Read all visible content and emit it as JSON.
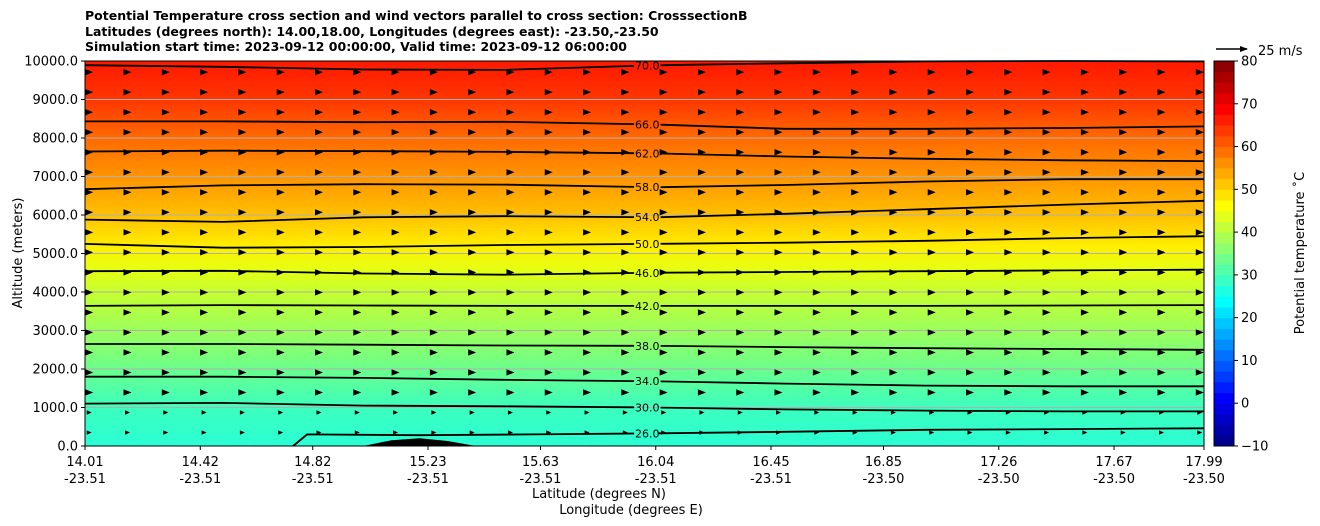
{
  "title_lines": [
    "Potential Temperature cross section and wind vectors parallel to cross section: CrosssectionB",
    "Latitudes (degrees north): 14.00,18.00, Longitudes (degrees east): -23.50,-23.50",
    "Simulation start time: 2023-09-12 00:00:00, Valid time: 2023-09-12 06:00:00"
  ],
  "chart_data": {
    "type": "heatmap",
    "ylabel": "Altitude (meters)",
    "xlabel_line1": "Latitude (degrees N)",
    "xlabel_line2": "Longitude (degrees E)",
    "ylim": [
      0,
      10000
    ],
    "yticks": [
      "0.0",
      "1000.0",
      "2000.0",
      "3000.0",
      "4000.0",
      "5000.0",
      "6000.0",
      "7000.0",
      "8000.0",
      "9000.0",
      "10000.0"
    ],
    "yticks_values": [
      0,
      1000,
      2000,
      3000,
      4000,
      5000,
      6000,
      7000,
      8000,
      9000,
      10000
    ],
    "xlim": [
      14.01,
      17.99
    ],
    "xticks_lat": [
      "14.01",
      "14.42",
      "14.82",
      "15.23",
      "15.63",
      "16.04",
      "16.45",
      "16.85",
      "17.26",
      "17.67",
      "17.99"
    ],
    "xticks_lon": [
      "-23.51",
      "-23.51",
      "-23.51",
      "-23.51",
      "-23.51",
      "-23.51",
      "-23.51",
      "-23.50",
      "-23.50",
      "-23.50",
      "-23.50"
    ],
    "xticks_values": [
      14.01,
      14.42,
      14.82,
      15.23,
      15.63,
      16.04,
      16.45,
      16.85,
      17.26,
      17.67,
      17.99
    ],
    "grid": true,
    "colorbar": {
      "label": "Potential temperature $^\\circ$C",
      "label_display": "Potential temperature ˚C",
      "range": [
        -10,
        80
      ],
      "ticks": [
        "80",
        "70",
        "60",
        "50",
        "40",
        "30",
        "20",
        "10",
        "0",
        "−10"
      ],
      "tick_values": [
        80,
        70,
        60,
        50,
        40,
        30,
        20,
        10,
        0,
        -10
      ],
      "colormap": "jet"
    },
    "quiver_key": "25 m/s",
    "contours": [
      {
        "label": "26.0",
        "value": 26,
        "x": [
          14.75,
          14.8,
          15.2,
          15.6,
          15.9,
          16.05,
          16.5,
          17.0,
          17.5,
          17.99
        ],
        "y": [
          0,
          300,
          280,
          300,
          320,
          330,
          370,
          420,
          440,
          460
        ]
      },
      {
        "label": "30.0",
        "value": 30,
        "x": [
          14.01,
          14.5,
          15.0,
          15.5,
          16.04,
          16.5,
          17.0,
          17.5,
          17.99
        ],
        "y": [
          1100,
          1120,
          1050,
          1030,
          1000,
          950,
          920,
          900,
          900
        ]
      },
      {
        "label": "34.0",
        "value": 34,
        "x": [
          14.01,
          14.5,
          15.0,
          15.5,
          16.04,
          16.5,
          17.0,
          17.5,
          17.99
        ],
        "y": [
          1800,
          1800,
          1770,
          1720,
          1680,
          1620,
          1570,
          1550,
          1550
        ]
      },
      {
        "label": "38.0",
        "value": 38,
        "x": [
          14.01,
          14.5,
          15.0,
          15.5,
          16.04,
          16.5,
          17.0,
          17.5,
          17.99
        ],
        "y": [
          2650,
          2650,
          2630,
          2610,
          2600,
          2570,
          2540,
          2520,
          2500
        ]
      },
      {
        "label": "42.0",
        "value": 42,
        "x": [
          14.01,
          14.5,
          15.0,
          15.5,
          16.04,
          16.5,
          17.0,
          17.5,
          17.99
        ],
        "y": [
          3640,
          3660,
          3650,
          3640,
          3640,
          3640,
          3640,
          3650,
          3660
        ]
      },
      {
        "label": "46.0",
        "value": 46,
        "x": [
          14.01,
          14.5,
          15.0,
          15.5,
          16.04,
          16.5,
          17.0,
          17.5,
          17.99
        ],
        "y": [
          4540,
          4550,
          4480,
          4450,
          4500,
          4520,
          4540,
          4560,
          4580
        ]
      },
      {
        "label": "50.0",
        "value": 50,
        "x": [
          14.01,
          14.5,
          15.0,
          15.5,
          16.04,
          16.5,
          17.0,
          17.5,
          17.99
        ],
        "y": [
          5250,
          5150,
          5170,
          5220,
          5250,
          5280,
          5330,
          5400,
          5450
        ]
      },
      {
        "label": "54.0",
        "value": 54,
        "x": [
          14.01,
          14.5,
          15.0,
          15.5,
          16.04,
          16.5,
          17.0,
          17.5,
          17.99
        ],
        "y": [
          5880,
          5820,
          5940,
          5970,
          5940,
          6030,
          6150,
          6270,
          6370
        ]
      },
      {
        "label": "58.0",
        "value": 58,
        "x": [
          14.01,
          14.5,
          15.0,
          15.5,
          16.04,
          16.5,
          17.0,
          17.5,
          17.99
        ],
        "y": [
          6670,
          6770,
          6800,
          6790,
          6720,
          6780,
          6870,
          6930,
          6930
        ]
      },
      {
        "label": "62.0",
        "value": 62,
        "x": [
          14.01,
          14.5,
          15.0,
          15.5,
          16.04,
          16.5,
          17.0,
          17.5,
          17.99
        ],
        "y": [
          7650,
          7670,
          7660,
          7640,
          7600,
          7520,
          7460,
          7420,
          7400
        ]
      },
      {
        "label": "66.0",
        "value": 66,
        "x": [
          14.01,
          14.5,
          15.0,
          15.5,
          16.04,
          16.5,
          17.0,
          17.5,
          17.99
        ],
        "y": [
          8430,
          8430,
          8410,
          8420,
          8350,
          8240,
          8240,
          8260,
          8300
        ]
      },
      {
        "label": "70.0",
        "value": 70,
        "x": [
          14.01,
          14.5,
          15.0,
          15.5,
          16.04,
          16.5,
          17.0,
          17.5,
          17.99
        ],
        "y": [
          9890,
          9850,
          9780,
          9770,
          9890,
          9940,
          9990,
          10000,
          9990
        ]
      }
    ],
    "terrain": {
      "x": [
        15.0,
        15.1,
        15.2,
        15.3,
        15.4
      ],
      "y": [
        0,
        150,
        200,
        130,
        0
      ]
    }
  }
}
